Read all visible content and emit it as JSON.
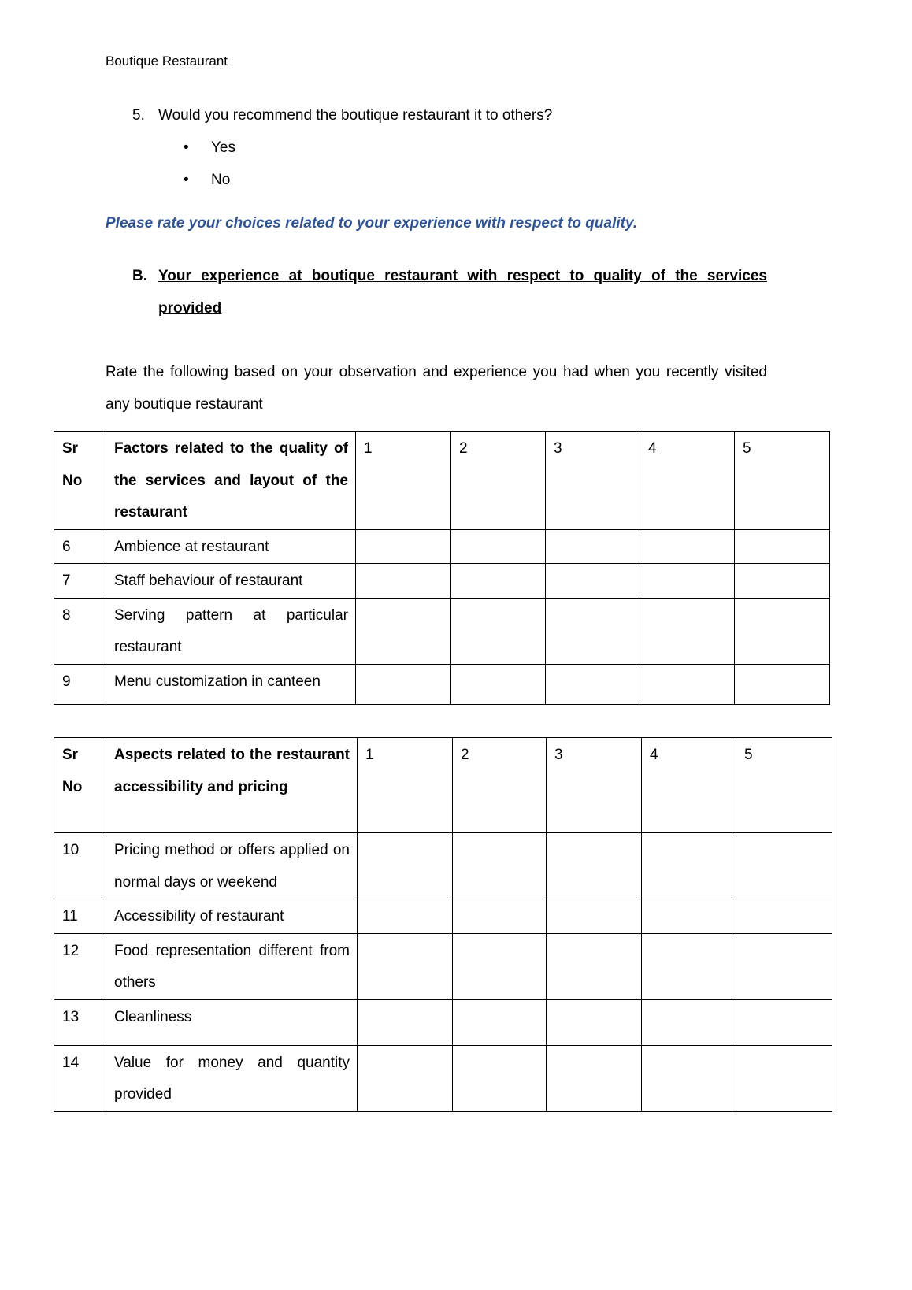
{
  "header": "Boutique Restaurant",
  "question": {
    "number": "5.",
    "text": "Would you recommend the boutique restaurant it to others?",
    "options": [
      "Yes",
      "No"
    ]
  },
  "instruction": "Please rate your choices related to your experience with respect to quality.",
  "section": {
    "label": "B.",
    "title": "Your experience at boutique restaurant with respect to quality of the services provided"
  },
  "paragraph": "Rate the following based on your observation and experience you had when you recently visited any boutique restaurant",
  "accent_color": "#2f5496",
  "table1": {
    "headers": [
      "Sr No",
      "Factors related to the quality of the services and layout of the restaurant",
      "1",
      "2",
      "3",
      "4",
      "5"
    ],
    "rows": [
      {
        "sr": "6",
        "factor": "Ambience at restaurant"
      },
      {
        "sr": "7",
        "factor": "Staff behaviour of restaurant"
      },
      {
        "sr": "8",
        "factor": "Serving pattern at particular restaurant"
      },
      {
        "sr": "9",
        "factor": "Menu customization in canteen"
      }
    ]
  },
  "table2": {
    "headers": [
      "Sr No",
      "Aspects related to the restaurant accessibility and pricing",
      "1",
      "2",
      "3",
      "4",
      "5"
    ],
    "rows": [
      {
        "sr": "10",
        "factor": "Pricing method or offers applied on normal days or weekend"
      },
      {
        "sr": "11",
        "factor": "Accessibility of restaurant"
      },
      {
        "sr": "12",
        "factor": "Food representation different from others"
      },
      {
        "sr": "13",
        "factor": "Cleanliness"
      },
      {
        "sr": "14",
        "factor": "Value for money and quantity provided"
      }
    ]
  }
}
